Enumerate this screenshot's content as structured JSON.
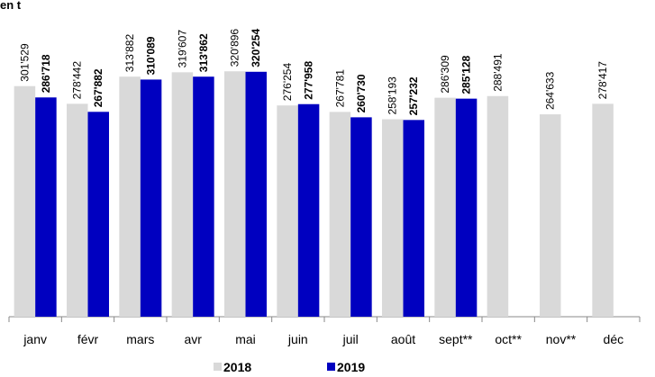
{
  "chart_data": {
    "type": "bar",
    "title": "en t",
    "categories": [
      "janv",
      "févr",
      "mars",
      "avr",
      "mai",
      "juin",
      "juil",
      "août",
      "sept**",
      "oct**",
      "nov**",
      "déc"
    ],
    "series": [
      {
        "name": "2018",
        "color": "#d9d9d9",
        "values": [
          301529,
          278442,
          313882,
          319607,
          320896,
          276254,
          267781,
          258193,
          286309,
          288491,
          264633,
          278417
        ],
        "value_labels": [
          "301'529",
          "278'442",
          "313'882",
          "319'607",
          "320'896",
          "276'254",
          "267'781",
          "258'193",
          "286'309",
          "288'491",
          "264'633",
          "278'417"
        ]
      },
      {
        "name": "2019",
        "color": "#0000c0",
        "values": [
          286718,
          267882,
          310089,
          313862,
          320254,
          277958,
          260730,
          257232,
          285128,
          null,
          null,
          null
        ],
        "value_labels": [
          "286'718",
          "267'882",
          "310'089",
          "313'862",
          "320'254",
          "277'958",
          "260'730",
          "257'232",
          "285'128",
          null,
          null,
          null
        ]
      }
    ],
    "ylim": [
      0,
      340000
    ]
  }
}
